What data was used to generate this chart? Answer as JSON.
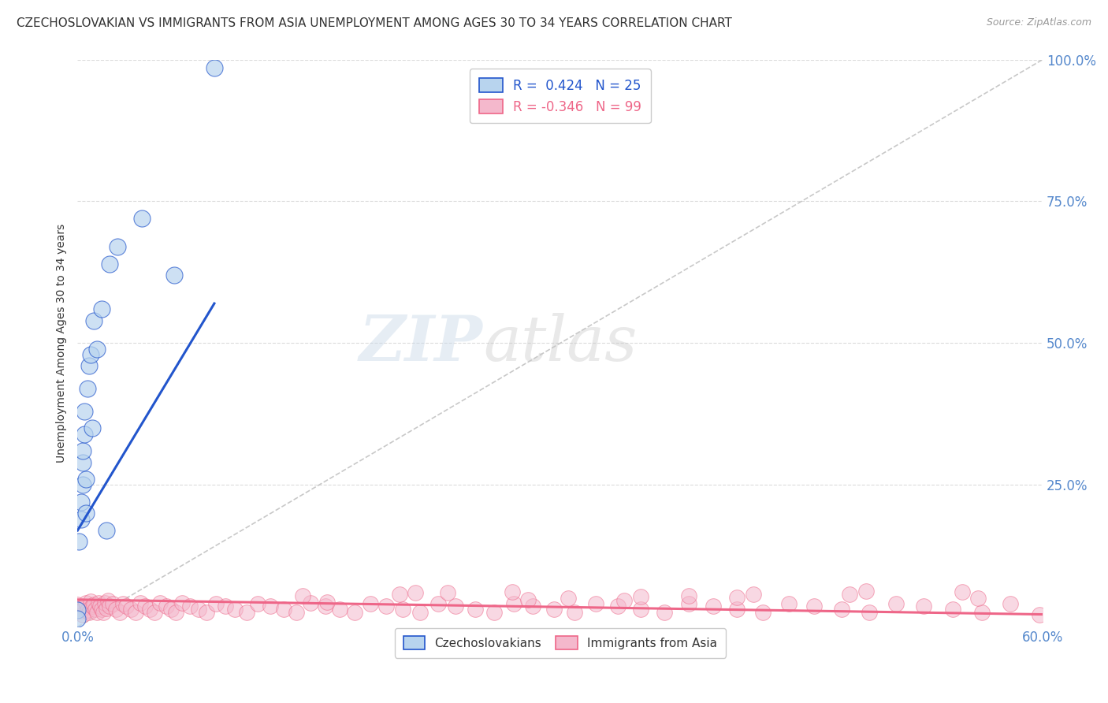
{
  "title": "CZECHOSLOVAKIAN VS IMMIGRANTS FROM ASIA UNEMPLOYMENT AMONG AGES 30 TO 34 YEARS CORRELATION CHART",
  "source": "Source: ZipAtlas.com",
  "ylabel_label": "Unemployment Among Ages 30 to 34 years",
  "legend_blue_r": "0.424",
  "legend_blue_n": "25",
  "legend_pink_r": "-0.346",
  "legend_pink_n": "99",
  "watermark_zip": "ZIP",
  "watermark_atlas": "atlas",
  "blue_color": "#b8d4ee",
  "pink_color": "#f4b8cc",
  "blue_line_color": "#2255cc",
  "pink_line_color": "#ee6688",
  "blue_scatter_x": [
    0.0,
    0.0,
    0.001,
    0.002,
    0.002,
    0.003,
    0.003,
    0.003,
    0.004,
    0.004,
    0.005,
    0.005,
    0.006,
    0.007,
    0.008,
    0.009,
    0.01,
    0.012,
    0.015,
    0.018,
    0.02,
    0.025,
    0.04,
    0.06,
    0.085
  ],
  "blue_scatter_y": [
    0.03,
    0.015,
    0.15,
    0.19,
    0.22,
    0.25,
    0.29,
    0.31,
    0.34,
    0.38,
    0.2,
    0.26,
    0.42,
    0.46,
    0.48,
    0.35,
    0.54,
    0.49,
    0.56,
    0.17,
    0.64,
    0.67,
    0.72,
    0.62,
    0.985
  ],
  "pink_scatter_x": [
    0.0,
    0.001,
    0.002,
    0.003,
    0.004,
    0.005,
    0.006,
    0.007,
    0.008,
    0.009,
    0.01,
    0.011,
    0.012,
    0.013,
    0.014,
    0.015,
    0.016,
    0.017,
    0.018,
    0.019,
    0.02,
    0.022,
    0.024,
    0.026,
    0.028,
    0.03,
    0.033,
    0.036,
    0.039,
    0.042,
    0.045,
    0.048,
    0.051,
    0.055,
    0.058,
    0.061,
    0.065,
    0.07,
    0.075,
    0.08,
    0.086,
    0.092,
    0.098,
    0.105,
    0.112,
    0.12,
    0.128,
    0.136,
    0.145,
    0.154,
    0.163,
    0.172,
    0.182,
    0.192,
    0.202,
    0.213,
    0.224,
    0.235,
    0.247,
    0.259,
    0.271,
    0.283,
    0.296,
    0.309,
    0.322,
    0.336,
    0.35,
    0.365,
    0.38,
    0.395,
    0.41,
    0.426,
    0.442,
    0.458,
    0.475,
    0.492,
    0.509,
    0.526,
    0.544,
    0.562,
    0.58,
    0.598,
    0.14,
    0.21,
    0.28,
    0.35,
    0.42,
    0.49,
    0.56,
    0.2,
    0.27,
    0.34,
    0.41,
    0.48,
    0.55,
    0.155,
    0.23,
    0.305,
    0.38
  ],
  "pink_scatter_y": [
    0.04,
    0.032,
    0.028,
    0.022,
    0.035,
    0.042,
    0.03,
    0.026,
    0.045,
    0.036,
    0.04,
    0.031,
    0.025,
    0.042,
    0.037,
    0.031,
    0.026,
    0.042,
    0.032,
    0.046,
    0.036,
    0.041,
    0.031,
    0.026,
    0.041,
    0.036,
    0.031,
    0.026,
    0.042,
    0.036,
    0.031,
    0.026,
    0.042,
    0.037,
    0.031,
    0.026,
    0.042,
    0.036,
    0.031,
    0.026,
    0.041,
    0.036,
    0.031,
    0.026,
    0.041,
    0.036,
    0.031,
    0.026,
    0.042,
    0.036,
    0.031,
    0.026,
    0.041,
    0.036,
    0.031,
    0.026,
    0.041,
    0.036,
    0.031,
    0.026,
    0.041,
    0.036,
    0.031,
    0.026,
    0.041,
    0.036,
    0.031,
    0.026,
    0.041,
    0.036,
    0.031,
    0.026,
    0.041,
    0.036,
    0.031,
    0.026,
    0.041,
    0.036,
    0.031,
    0.026,
    0.041,
    0.022,
    0.055,
    0.06,
    0.048,
    0.053,
    0.058,
    0.063,
    0.05,
    0.057,
    0.062,
    0.047,
    0.052,
    0.057,
    0.062,
    0.044,
    0.06,
    0.05,
    0.055
  ],
  "xlim": [
    0.0,
    0.6
  ],
  "ylim": [
    0.0,
    1.0
  ],
  "blue_trend_x": [
    0.0,
    0.085
  ],
  "blue_trend_y": [
    0.17,
    0.57
  ],
  "pink_trend_x": [
    0.0,
    0.6
  ],
  "pink_trend_y": [
    0.048,
    0.022
  ],
  "dashed_line_x": [
    0.0,
    0.6
  ],
  "dashed_line_y": [
    0.0,
    1.0
  ],
  "ytick_vals": [
    0.0,
    0.25,
    0.5,
    0.75,
    1.0
  ],
  "ytick_labels": [
    "",
    "25.0%",
    "50.0%",
    "75.0%",
    "100.0%"
  ],
  "xtick_vals": [
    0.0,
    0.6
  ],
  "xtick_labels": [
    "0.0%",
    "60.0%"
  ],
  "tick_color": "#5588cc",
  "grid_color": "#cccccc",
  "title_fontsize": 11,
  "axis_fontsize": 12,
  "legend_fontsize": 12
}
